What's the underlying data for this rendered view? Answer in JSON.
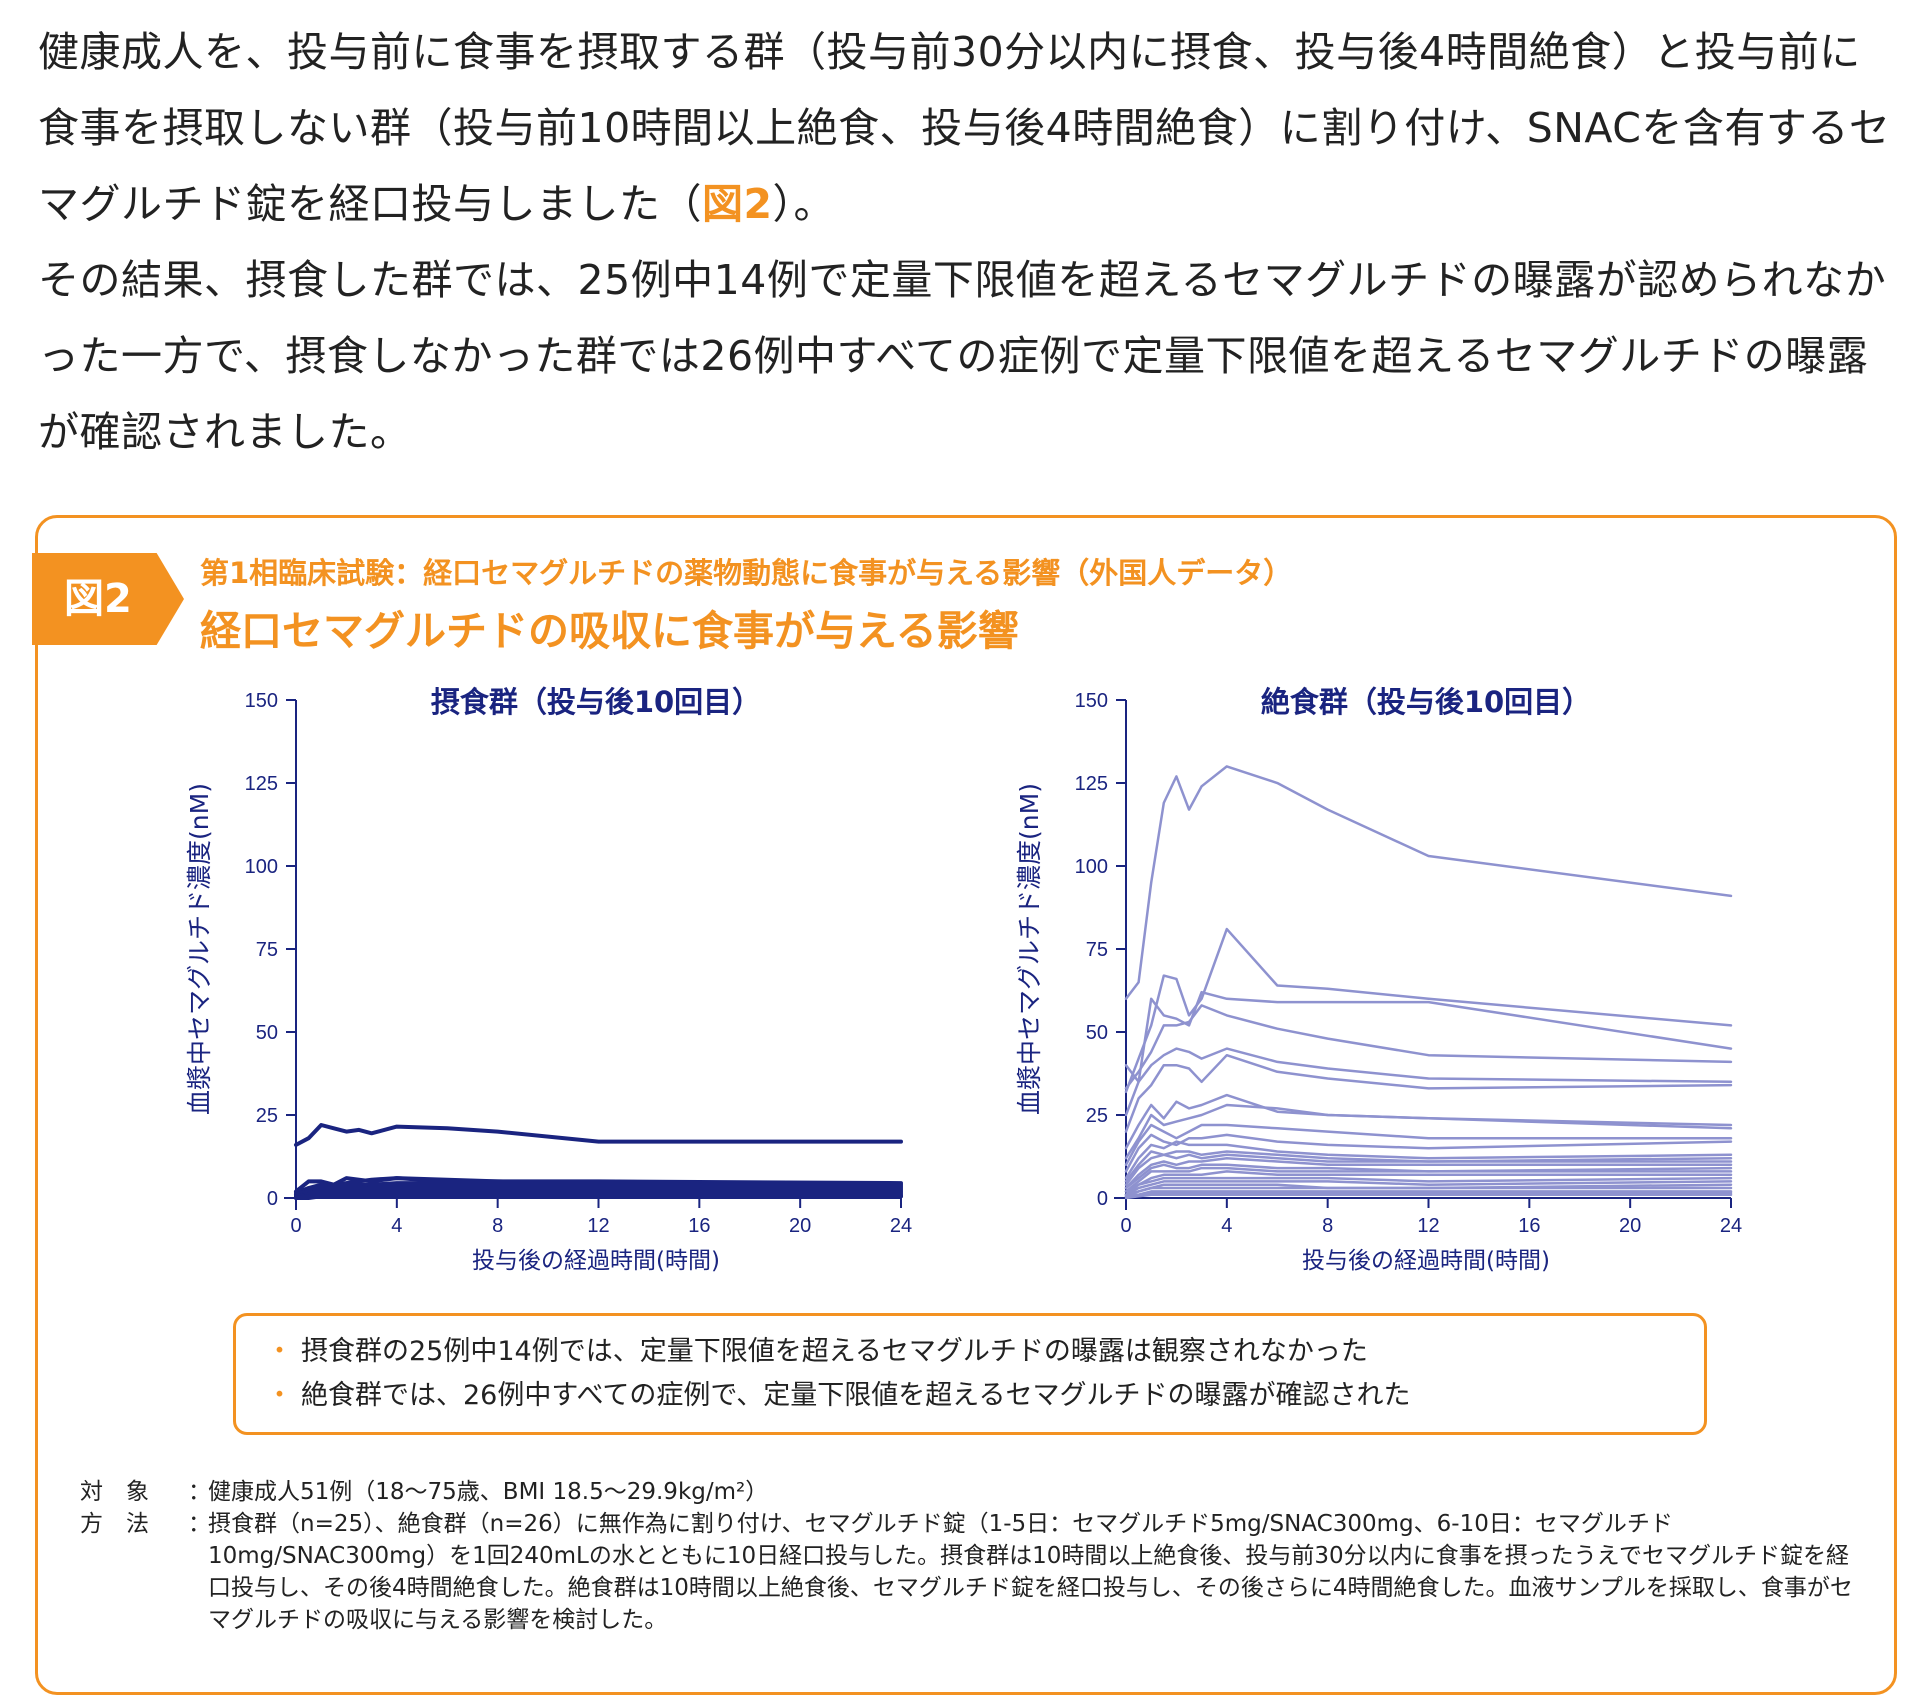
{
  "intro": {
    "p1_a": "健康成人を、投与前に食事を摂取する群（投与前30分以内に摂食、投与後4時間絶食）と投与前に食事を摂取しない群（投与前10時間以上絶食、投与後4時間絶食）に割り付け、SNACを含有するセマグルチド錠を経口投与しました（",
    "p1_ref": "図2",
    "p1_b": "）。",
    "p2": "その結果、摂食した群では、25例中14例で定量下限値を超えるセマグルチドの曝露が認められなかった一方で、摂食しなかった群では26例中すべての症例で定量下限値を超えるセマグルチドの曝露が確認されました。"
  },
  "figure": {
    "tag": "図2",
    "subtitle": "第1相臨床試験：経口セマグルチドの薬物動態に食事が与える影響（外国人データ）",
    "title": "経口セマグルチドの吸収に食事が与える影響"
  },
  "colors": {
    "orange": "#f39221",
    "navy": "#1a2480",
    "lavender": "#8e92cf"
  },
  "chart_data": [
    {
      "type": "line",
      "title": "摂食群（投与後10回目）",
      "xlabel": "投与後の経過時間(時間)",
      "ylabel": "血漿中セマグルチド濃度(nM)",
      "xlim": [
        0,
        24
      ],
      "ylim": [
        0,
        150
      ],
      "xticks": [
        0,
        4,
        8,
        12,
        16,
        20,
        24
      ],
      "yticks": [
        0,
        25,
        50,
        75,
        100,
        125,
        150
      ],
      "color": "#1a2480",
      "stroke": 4,
      "x": [
        0,
        0.5,
        1,
        1.5,
        2,
        2.5,
        3,
        4,
        6,
        8,
        12,
        24
      ],
      "series": [
        {
          "values": [
            16,
            18,
            22,
            21,
            20,
            20.5,
            19.5,
            21.5,
            21,
            20,
            17,
            17
          ]
        },
        {
          "values": [
            2,
            5,
            5,
            4,
            6,
            5.5,
            5,
            6,
            5.5,
            5,
            5,
            4.5
          ]
        },
        {
          "values": [
            1.5,
            3,
            4,
            3.5,
            4.5,
            5,
            5.5,
            6,
            5,
            5,
            4.5,
            4
          ]
        },
        {
          "values": [
            1,
            2.5,
            3,
            3,
            3.5,
            4,
            4,
            4.5,
            4.5,
            4,
            4,
            3.5
          ]
        },
        {
          "values": [
            1,
            2,
            2.5,
            2.5,
            3,
            3,
            3.5,
            3.5,
            3.5,
            3,
            3,
            3
          ]
        },
        {
          "values": [
            0.5,
            1.5,
            2,
            2,
            2.5,
            2.5,
            3,
            3,
            3,
            2.5,
            2.5,
            2.5
          ]
        },
        {
          "values": [
            0.5,
            1,
            1.5,
            1.5,
            2,
            2,
            2,
            2.5,
            2.5,
            2,
            2,
            2
          ]
        },
        {
          "values": [
            0.5,
            1,
            1,
            1,
            1.5,
            1.5,
            1.5,
            2,
            2,
            1.5,
            1.5,
            1.5
          ]
        },
        {
          "values": [
            0,
            0.5,
            0.5,
            0.5,
            1,
            1,
            1,
            1,
            1,
            1,
            1,
            1
          ]
        },
        {
          "values": [
            0,
            0.5,
            1,
            1,
            1,
            1,
            1,
            1.5,
            1.5,
            1,
            1,
            0.5
          ]
        },
        {
          "values": [
            0,
            0,
            0.5,
            0.5,
            0.5,
            0.5,
            0.5,
            0.5,
            0.5,
            0.5,
            0.5,
            0.5
          ]
        }
      ]
    },
    {
      "type": "line",
      "title": "絶食群（投与後10回目）",
      "xlabel": "投与後の経過時間(時間)",
      "ylabel": "血漿中セマグルチド濃度(nM)",
      "xlim": [
        0,
        24
      ],
      "ylim": [
        0,
        150
      ],
      "xticks": [
        0,
        4,
        8,
        12,
        16,
        20,
        24
      ],
      "yticks": [
        0,
        25,
        50,
        75,
        100,
        125,
        150
      ],
      "color": "#8e92cf",
      "stroke": 2.5,
      "x": [
        0,
        0.5,
        1,
        1.5,
        2,
        2.5,
        3,
        4,
        6,
        8,
        12,
        24
      ],
      "series": [
        {
          "values": [
            60,
            65,
            95,
            119,
            127,
            117,
            124,
            130,
            125,
            117,
            103,
            91
          ]
        },
        {
          "values": [
            32,
            42,
            52,
            67,
            66,
            55,
            60,
            81,
            64,
            63,
            60,
            52
          ]
        },
        {
          "values": [
            40,
            35,
            60,
            55,
            54,
            52,
            62,
            60,
            59,
            59,
            59,
            45
          ]
        },
        {
          "values": [
            33,
            38,
            44,
            52,
            52,
            53,
            58,
            55,
            51,
            48,
            43,
            41
          ]
        },
        {
          "values": [
            25,
            35,
            40,
            43,
            45,
            44,
            42,
            45,
            41,
            39,
            36,
            35
          ]
        },
        {
          "values": [
            20,
            30,
            34,
            40,
            40,
            39,
            35,
            43,
            38,
            36,
            33,
            34
          ]
        },
        {
          "values": [
            15,
            22,
            28,
            24,
            29,
            27,
            28,
            31,
            26,
            25,
            24,
            22
          ]
        },
        {
          "values": [
            12,
            18,
            25,
            22,
            23,
            24,
            25,
            28,
            27,
            25,
            24,
            21
          ]
        },
        {
          "values": [
            10,
            17,
            22,
            20,
            18,
            20,
            22,
            22,
            21,
            20,
            18,
            18
          ]
        },
        {
          "values": [
            8,
            15,
            19,
            17,
            16,
            18,
            18,
            19,
            17,
            16,
            15,
            17
          ]
        },
        {
          "values": [
            6,
            12,
            16,
            15,
            17,
            16,
            16,
            16,
            14,
            13,
            12,
            13
          ]
        },
        {
          "values": [
            5,
            10,
            14,
            13,
            14,
            14,
            13,
            14,
            13,
            12,
            11,
            12
          ]
        },
        {
          "values": [
            4,
            9,
            12,
            13,
            12,
            13,
            12,
            13,
            12,
            11,
            11,
            11
          ]
        },
        {
          "values": [
            3,
            7,
            10,
            11,
            10,
            11,
            11,
            12,
            11,
            10,
            10,
            10
          ]
        },
        {
          "values": [
            3,
            6,
            9,
            10,
            9,
            9,
            10,
            10,
            9,
            9,
            8,
            9
          ]
        },
        {
          "values": [
            2,
            5,
            8,
            8,
            8,
            8,
            9,
            9,
            8,
            8,
            8,
            8
          ]
        },
        {
          "values": [
            2,
            4,
            6,
            7,
            7,
            7,
            7,
            8,
            7,
            7,
            7,
            7
          ]
        },
        {
          "values": [
            1,
            4,
            5,
            6,
            6,
            6,
            6,
            6,
            6,
            6,
            5,
            6
          ]
        },
        {
          "values": [
            1,
            3,
            4,
            5,
            5,
            5,
            5,
            5,
            5,
            5,
            4,
            5
          ]
        },
        {
          "values": [
            1,
            2,
            3,
            4,
            4,
            4,
            4,
            4,
            4,
            3,
            3,
            4
          ]
        },
        {
          "values": [
            0.5,
            2,
            3,
            3,
            3,
            3,
            3,
            3,
            3,
            3,
            3,
            3
          ]
        },
        {
          "values": [
            0.5,
            1,
            2,
            2,
            2,
            2,
            2,
            2,
            2,
            2,
            2,
            2
          ]
        },
        {
          "values": [
            0.5,
            1,
            1.5,
            1.5,
            1.5,
            1.5,
            1.5,
            1.5,
            1.5,
            1.5,
            1.5,
            1.5
          ]
        },
        {
          "values": [
            0,
            0.5,
            1,
            1,
            1,
            1,
            1,
            1,
            1,
            1,
            1,
            1
          ]
        }
      ]
    }
  ],
  "notes": [
    "摂食群の25例中14例では、定量下限値を超えるセマグルチドの曝露は観察されなかった",
    "絶食群では、26例中すべての症例で、定量下限値を超えるセマグルチドの曝露が確認された"
  ],
  "note_bullet": "・",
  "footer": {
    "subject_label": "対　象",
    "subject_text": "健康成人51例（18〜75歳、BMI 18.5〜29.9kg/m²）",
    "method_label": "方　法",
    "method_text": "摂食群（n=25）、絶食群（n=26）に無作為に割り付け、セマグルチド錠（1-5日：セマグルチド5mg/SNAC300mg、6-10日：セマグルチド10mg/SNAC300mg）を1回240mLの水とともに10日経口投与した。摂食群は10時間以上絶食後、投与前30分以内に食事を摂ったうえでセマグルチド錠を経口投与し、その後4時間絶食した。絶食群は10時間以上絶食後、セマグルチド錠を経口投与し、その後さらに4時間絶食した。血液サンプルを採取し、食事がセマグルチドの吸収に与える影響を検討した。"
  }
}
